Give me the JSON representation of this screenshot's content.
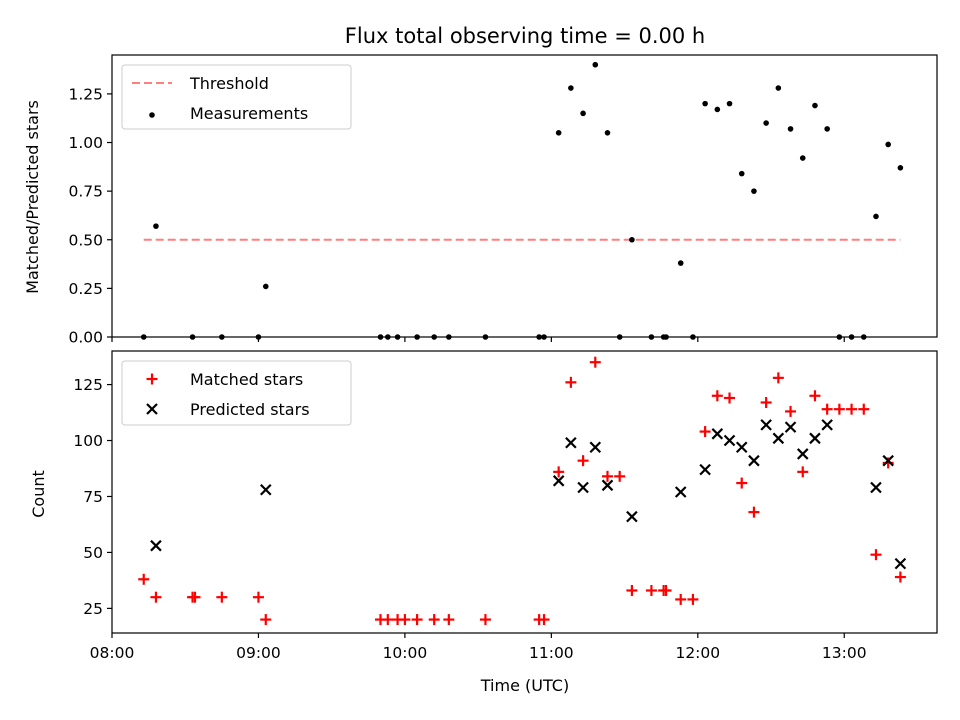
{
  "chart_data": [
    {
      "type": "line",
      "title": "Flux total observing time = 0.00 h",
      "ylabel": "Matched/Predicted stars",
      "xlabel": "",
      "x_unit": "time (UTC)",
      "xlim": [
        "08:00",
        "13:38"
      ],
      "ylim": [
        0,
        1.45
      ],
      "x_ticks": [
        "08:00",
        "09:00",
        "10:00",
        "11:00",
        "12:00",
        "13:00"
      ],
      "x_tick_labels_visible": false,
      "y_ticks": [
        0.0,
        0.25,
        0.5,
        0.75,
        1.0,
        1.25
      ],
      "y_tick_labels": [
        "0.00",
        "0.25",
        "0.50",
        "0.75",
        "1.00",
        "1.25"
      ],
      "grid": false,
      "legend": {
        "placement": "top-left",
        "entries": [
          "Threshold",
          "Measurements"
        ]
      },
      "series": [
        {
          "name": "Threshold",
          "kind": "dashed-line",
          "color": "#ff7f7f",
          "x": [
            "08:13",
            "13:23"
          ],
          "y": [
            0.5,
            0.5
          ]
        },
        {
          "name": "Measurements",
          "kind": "scatter",
          "marker": "dot",
          "color": "#000000",
          "points": [
            [
              "08:13",
              0.0
            ],
            [
              "08:18",
              0.57
            ],
            [
              "08:33",
              0.0
            ],
            [
              "08:45",
              0.0
            ],
            [
              "09:00",
              0.0
            ],
            [
              "09:03",
              0.26
            ],
            [
              "09:50",
              0.0
            ],
            [
              "09:53",
              0.0
            ],
            [
              "09:57",
              0.0
            ],
            [
              "10:05",
              0.0
            ],
            [
              "10:12",
              0.0
            ],
            [
              "10:18",
              0.0
            ],
            [
              "10:33",
              0.0
            ],
            [
              "10:55",
              0.0
            ],
            [
              "10:57",
              0.0
            ],
            [
              "11:03",
              1.05
            ],
            [
              "11:08",
              1.28
            ],
            [
              "11:13",
              1.15
            ],
            [
              "11:18",
              1.4
            ],
            [
              "11:23",
              1.05
            ],
            [
              "11:28",
              0.0
            ],
            [
              "11:33",
              0.5
            ],
            [
              "11:41",
              0.0
            ],
            [
              "11:46",
              0.0
            ],
            [
              "11:47",
              0.0
            ],
            [
              "11:53",
              0.38
            ],
            [
              "11:58",
              0.0
            ],
            [
              "12:03",
              1.2
            ],
            [
              "12:08",
              1.17
            ],
            [
              "12:13",
              1.2
            ],
            [
              "12:18",
              0.84
            ],
            [
              "12:23",
              0.75
            ],
            [
              "12:28",
              1.1
            ],
            [
              "12:33",
              1.28
            ],
            [
              "12:38",
              1.07
            ],
            [
              "12:43",
              0.92
            ],
            [
              "12:48",
              1.19
            ],
            [
              "12:53",
              1.07
            ],
            [
              "12:58",
              0.0
            ],
            [
              "13:03",
              0.0
            ],
            [
              "13:08",
              0.0
            ],
            [
              "13:13",
              0.62
            ],
            [
              "13:18",
              0.99
            ],
            [
              "13:23",
              0.87
            ]
          ]
        }
      ]
    },
    {
      "type": "scatter",
      "title": "",
      "ylabel": "Count",
      "xlabel": "Time (UTC)",
      "xlim": [
        "08:00",
        "13:38"
      ],
      "ylim": [
        14,
        140
      ],
      "x_ticks": [
        "08:00",
        "09:00",
        "10:00",
        "11:00",
        "12:00",
        "13:00"
      ],
      "x_tick_labels": [
        "08:00",
        "09:00",
        "10:00",
        "11:00",
        "12:00",
        "13:00"
      ],
      "y_ticks": [
        25,
        50,
        75,
        100,
        125
      ],
      "y_tick_labels": [
        "25",
        "50",
        "75",
        "100",
        "125"
      ],
      "grid": false,
      "legend": {
        "placement": "top-left",
        "entries": [
          "Matched stars",
          "Predicted stars"
        ]
      },
      "series": [
        {
          "name": "Matched stars",
          "marker": "plus",
          "color": "#ff0000",
          "points": [
            [
              "08:13",
              38
            ],
            [
              "08:18",
              30
            ],
            [
              "08:33",
              30
            ],
            [
              "08:34",
              30
            ],
            [
              "08:45",
              30
            ],
            [
              "09:00",
              30
            ],
            [
              "09:03",
              20
            ],
            [
              "09:50",
              20
            ],
            [
              "09:53",
              20
            ],
            [
              "09:57",
              20
            ],
            [
              "10:00",
              20
            ],
            [
              "10:05",
              20
            ],
            [
              "10:12",
              20
            ],
            [
              "10:18",
              20
            ],
            [
              "10:33",
              20
            ],
            [
              "10:55",
              20
            ],
            [
              "10:57",
              20
            ],
            [
              "11:03",
              86
            ],
            [
              "11:08",
              126
            ],
            [
              "11:13",
              91
            ],
            [
              "11:18",
              135
            ],
            [
              "11:23",
              84
            ],
            [
              "11:28",
              84
            ],
            [
              "11:33",
              33
            ],
            [
              "11:41",
              33
            ],
            [
              "11:46",
              33
            ],
            [
              "11:47",
              33
            ],
            [
              "11:53",
              29
            ],
            [
              "11:58",
              29
            ],
            [
              "12:03",
              104
            ],
            [
              "12:08",
              120
            ],
            [
              "12:13",
              119
            ],
            [
              "12:18",
              81
            ],
            [
              "12:23",
              68
            ],
            [
              "12:28",
              117
            ],
            [
              "12:33",
              128
            ],
            [
              "12:38",
              113
            ],
            [
              "12:43",
              86
            ],
            [
              "12:48",
              120
            ],
            [
              "12:53",
              114
            ],
            [
              "12:58",
              114
            ],
            [
              "13:03",
              114
            ],
            [
              "13:08",
              114
            ],
            [
              "13:13",
              49
            ],
            [
              "13:18",
              90
            ],
            [
              "13:23",
              39
            ]
          ]
        },
        {
          "name": "Predicted stars",
          "marker": "x",
          "color": "#000000",
          "points": [
            [
              "08:18",
              53
            ],
            [
              "09:03",
              78
            ],
            [
              "11:03",
              82
            ],
            [
              "11:08",
              99
            ],
            [
              "11:13",
              79
            ],
            [
              "11:18",
              97
            ],
            [
              "11:23",
              80
            ],
            [
              "11:33",
              66
            ],
            [
              "11:53",
              77
            ],
            [
              "12:03",
              87
            ],
            [
              "12:08",
              103
            ],
            [
              "12:13",
              100
            ],
            [
              "12:18",
              97
            ],
            [
              "12:23",
              91
            ],
            [
              "12:28",
              107
            ],
            [
              "12:33",
              101
            ],
            [
              "12:38",
              106
            ],
            [
              "12:43",
              94
            ],
            [
              "12:48",
              101
            ],
            [
              "12:53",
              107
            ],
            [
              "13:13",
              79
            ],
            [
              "13:18",
              91
            ],
            [
              "13:23",
              45
            ]
          ]
        }
      ]
    }
  ]
}
